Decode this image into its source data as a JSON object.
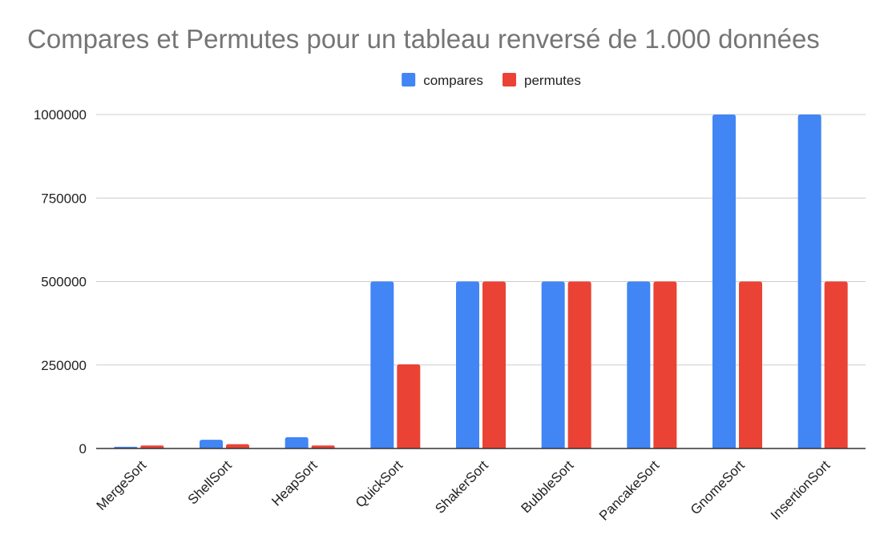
{
  "chart_data": {
    "type": "bar",
    "title": "Compares et Permutes pour un tableau renversé de 1.000 données",
    "xlabel": "",
    "ylabel": "",
    "categories": [
      "MergeSort",
      "ShellSort",
      "HeapSort",
      "QuickSort",
      "ShakerSort",
      "BubbleSort",
      "PancakeSort",
      "GnomeSort",
      "InsertionSort"
    ],
    "series": [
      {
        "name": "compares",
        "color": "#4285f4",
        "values": [
          5000,
          26000,
          34000,
          500000,
          500000,
          500000,
          500000,
          1000000,
          1000000
        ]
      },
      {
        "name": "permutes",
        "color": "#ea4335",
        "values": [
          9000,
          13000,
          9000,
          252000,
          500000,
          500000,
          500000,
          500000,
          500000
        ]
      }
    ],
    "ylim": [
      0,
      1000000
    ],
    "yticks": [
      0,
      250000,
      500000,
      750000,
      1000000
    ],
    "legend_position": "top",
    "grid": true
  }
}
